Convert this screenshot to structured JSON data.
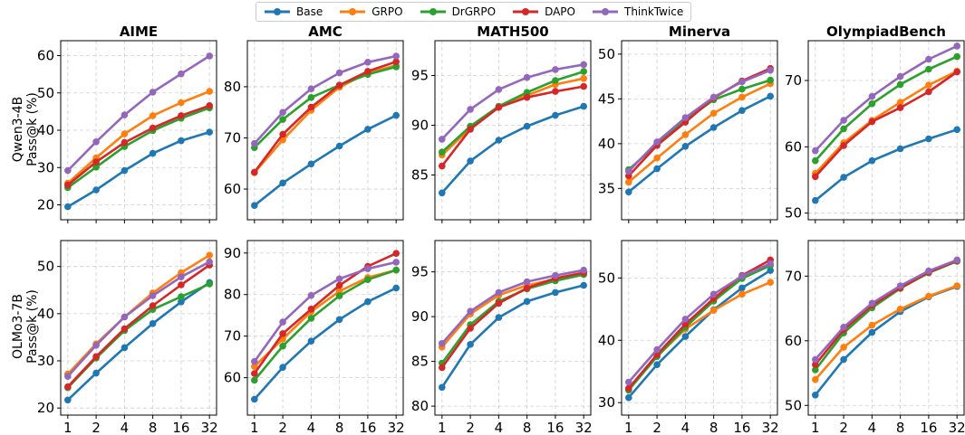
{
  "legend": [
    {
      "name": "Base",
      "color": "#1f77b4"
    },
    {
      "name": "GRPO",
      "color": "#ff7f0e"
    },
    {
      "name": "DrGRPO",
      "color": "#2ca02c"
    },
    {
      "name": "DAPO",
      "color": "#d62728"
    },
    {
      "name": "ThinkTwice",
      "color": "#9467bd"
    }
  ],
  "row_labels": [
    {
      "model": "Qwen3-4B",
      "metric": "Pass@k (%)"
    },
    {
      "model": "OLMo3-7B",
      "metric": "Pass@k (%)"
    }
  ],
  "chart_data": [
    {
      "type": "line",
      "title": "AIME",
      "row": 0,
      "col": 0,
      "x": [
        1,
        2,
        4,
        8,
        16,
        32
      ],
      "x_tick_labels": [
        "1",
        "2",
        "4",
        "8",
        "16",
        "32"
      ],
      "ylim": [
        16,
        64
      ],
      "yticks": [
        20,
        30,
        40,
        50,
        60
      ],
      "grid": true,
      "series": [
        {
          "name": "Base",
          "values": [
            19.5,
            24.0,
            29.2,
            33.8,
            37.2,
            39.5
          ]
        },
        {
          "name": "GRPO",
          "values": [
            25.8,
            32.6,
            39.0,
            43.9,
            47.4,
            50.4
          ]
        },
        {
          "name": "DrGRPO",
          "values": [
            24.6,
            30.1,
            35.6,
            39.9,
            43.2,
            46.0
          ]
        },
        {
          "name": "DAPO",
          "values": [
            25.3,
            31.5,
            36.7,
            40.6,
            43.9,
            46.6
          ]
        },
        {
          "name": "ThinkTwice",
          "values": [
            29.2,
            36.9,
            44.1,
            50.2,
            55.1,
            59.9
          ]
        }
      ]
    },
    {
      "type": "line",
      "title": "AMC",
      "row": 0,
      "col": 1,
      "x": [
        1,
        2,
        4,
        8,
        16,
        32
      ],
      "x_tick_labels": [
        "1",
        "2",
        "4",
        "8",
        "16",
        "32"
      ],
      "ylim": [
        54,
        89
      ],
      "yticks": [
        60,
        70,
        80
      ],
      "grid": true,
      "series": [
        {
          "name": "Base",
          "values": [
            56.8,
            61.2,
            64.9,
            68.4,
            71.7,
            74.4
          ]
        },
        {
          "name": "GRPO",
          "values": [
            63.2,
            69.6,
            75.4,
            79.9,
            82.7,
            84.2
          ]
        },
        {
          "name": "DrGRPO",
          "values": [
            68.1,
            73.6,
            77.9,
            80.3,
            82.4,
            83.9
          ]
        },
        {
          "name": "DAPO",
          "values": [
            63.3,
            70.7,
            76.0,
            80.3,
            83.0,
            84.9
          ]
        },
        {
          "name": "ThinkTwice",
          "values": [
            68.9,
            75.0,
            79.6,
            82.7,
            84.8,
            86.0
          ]
        }
      ]
    },
    {
      "type": "line",
      "title": "MATH500",
      "row": 0,
      "col": 2,
      "x": [
        1,
        2,
        4,
        8,
        16,
        32
      ],
      "x_tick_labels": [
        "1",
        "2",
        "4",
        "8",
        "16",
        "32"
      ],
      "ylim": [
        80.5,
        98.5
      ],
      "yticks": [
        85,
        90,
        95
      ],
      "grid": true,
      "series": [
        {
          "name": "Base",
          "values": [
            83.2,
            86.4,
            88.5,
            89.9,
            91.0,
            91.9
          ]
        },
        {
          "name": "GRPO",
          "values": [
            87.0,
            89.7,
            91.8,
            93.0,
            94.1,
            94.7
          ]
        },
        {
          "name": "DrGRPO",
          "values": [
            87.3,
            89.9,
            91.9,
            93.3,
            94.5,
            95.4
          ]
        },
        {
          "name": "DAPO",
          "values": [
            85.9,
            89.6,
            91.8,
            92.8,
            93.4,
            93.9
          ]
        },
        {
          "name": "ThinkTwice",
          "values": [
            88.6,
            91.6,
            93.6,
            94.8,
            95.6,
            96.1
          ]
        }
      ]
    },
    {
      "type": "line",
      "title": "Minerva",
      "row": 0,
      "col": 3,
      "x": [
        1,
        2,
        4,
        8,
        16,
        32
      ],
      "x_tick_labels": [
        "1",
        "2",
        "4",
        "8",
        "16",
        "32"
      ],
      "ylim": [
        31.5,
        51.5
      ],
      "yticks": [
        35,
        40,
        45,
        50
      ],
      "grid": true,
      "series": [
        {
          "name": "Base",
          "values": [
            34.6,
            37.2,
            39.7,
            41.8,
            43.7,
            45.3
          ]
        },
        {
          "name": "GRPO",
          "values": [
            35.7,
            38.4,
            41.0,
            43.4,
            45.2,
            46.7
          ]
        },
        {
          "name": "DrGRPO",
          "values": [
            37.1,
            39.9,
            42.6,
            44.9,
            46.1,
            47.1
          ]
        },
        {
          "name": "DAPO",
          "values": [
            36.4,
            39.8,
            42.4,
            45.1,
            47.0,
            48.4
          ]
        },
        {
          "name": "ThinkTwice",
          "values": [
            36.9,
            40.2,
            42.9,
            45.2,
            46.9,
            48.2
          ]
        }
      ]
    },
    {
      "type": "line",
      "title": "OlympiadBench",
      "row": 0,
      "col": 4,
      "x": [
        1,
        2,
        4,
        8,
        16,
        32
      ],
      "x_tick_labels": [
        "1",
        "2",
        "4",
        "8",
        "16",
        "32"
      ],
      "ylim": [
        49,
        76
      ],
      "yticks": [
        50,
        60,
        70
      ],
      "grid": true,
      "series": [
        {
          "name": "Base",
          "values": [
            51.9,
            55.4,
            57.9,
            59.7,
            61.2,
            62.6
          ]
        },
        {
          "name": "GRPO",
          "values": [
            56.0,
            60.6,
            64.0,
            66.7,
            69.3,
            71.4
          ]
        },
        {
          "name": "DrGRPO",
          "values": [
            57.9,
            62.7,
            66.5,
            69.4,
            71.7,
            73.6
          ]
        },
        {
          "name": "DAPO",
          "values": [
            55.5,
            60.2,
            63.8,
            65.9,
            68.3,
            71.3
          ]
        },
        {
          "name": "ThinkTwice",
          "values": [
            59.4,
            64.0,
            67.6,
            70.6,
            73.2,
            75.2
          ]
        }
      ]
    },
    {
      "type": "line",
      "title": "",
      "row": 1,
      "col": 0,
      "x": [
        1,
        2,
        4,
        8,
        16,
        32
      ],
      "x_tick_labels": [
        "1",
        "2",
        "4",
        "8",
        "16",
        "32"
      ],
      "ylim": [
        18.5,
        55.5
      ],
      "yticks": [
        20,
        30,
        40,
        50
      ],
      "grid": true,
      "series": [
        {
          "name": "Base",
          "values": [
            21.7,
            27.4,
            32.8,
            37.9,
            42.5,
            46.6
          ]
        },
        {
          "name": "GRPO",
          "values": [
            27.2,
            33.6,
            39.3,
            44.4,
            48.7,
            52.4
          ]
        },
        {
          "name": "DrGRPO",
          "values": [
            24.3,
            30.6,
            36.4,
            40.9,
            43.6,
            46.3
          ]
        },
        {
          "name": "DAPO",
          "values": [
            24.5,
            30.9,
            36.8,
            41.7,
            46.1,
            50.3
          ]
        },
        {
          "name": "ThinkTwice",
          "values": [
            26.7,
            33.3,
            39.3,
            43.8,
            47.8,
            51.0
          ]
        }
      ]
    },
    {
      "type": "line",
      "title": "",
      "row": 1,
      "col": 1,
      "x": [
        1,
        2,
        4,
        8,
        16,
        32
      ],
      "x_tick_labels": [
        "1",
        "2",
        "4",
        "8",
        "16",
        "32"
      ],
      "ylim": [
        51,
        93
      ],
      "yticks": [
        60,
        70,
        80,
        90
      ],
      "grid": true,
      "series": [
        {
          "name": "Base",
          "values": [
            54.8,
            62.5,
            68.8,
            74.0,
            78.3,
            81.6
          ]
        },
        {
          "name": "GRPO",
          "values": [
            62.7,
            69.3,
            75.9,
            80.8,
            84.1,
            85.9
          ]
        },
        {
          "name": "DrGRPO",
          "values": [
            59.4,
            67.6,
            74.3,
            79.7,
            83.6,
            85.9
          ]
        },
        {
          "name": "DAPO",
          "values": [
            61.0,
            70.6,
            76.5,
            82.2,
            86.8,
            89.9
          ]
        },
        {
          "name": "ThinkTwice",
          "values": [
            63.9,
            73.4,
            79.8,
            83.8,
            86.2,
            87.8
          ]
        }
      ]
    },
    {
      "type": "line",
      "title": "",
      "row": 1,
      "col": 2,
      "x": [
        1,
        2,
        4,
        8,
        16,
        32
      ],
      "x_tick_labels": [
        "1",
        "2",
        "4",
        "8",
        "16",
        "32"
      ],
      "ylim": [
        79,
        98.5
      ],
      "yticks": [
        80,
        85,
        90,
        95
      ],
      "grid": true,
      "series": [
        {
          "name": "Base",
          "values": [
            82.1,
            86.9,
            89.9,
            91.7,
            92.7,
            93.5
          ]
        },
        {
          "name": "GRPO",
          "values": [
            86.6,
            90.3,
            92.4,
            93.5,
            94.2,
            94.9
          ]
        },
        {
          "name": "DrGRPO",
          "values": [
            84.8,
            89.1,
            91.7,
            93.1,
            94.0,
            94.7
          ]
        },
        {
          "name": "DAPO",
          "values": [
            84.3,
            88.7,
            91.5,
            93.2,
            94.3,
            94.9
          ]
        },
        {
          "name": "ThinkTwice",
          "values": [
            87.0,
            90.6,
            92.7,
            93.9,
            94.6,
            95.2
          ]
        }
      ]
    },
    {
      "type": "line",
      "title": "",
      "row": 1,
      "col": 3,
      "x": [
        1,
        2,
        4,
        8,
        16,
        32
      ],
      "x_tick_labels": [
        "1",
        "2",
        "4",
        "8",
        "16",
        "32"
      ],
      "ylim": [
        28,
        56
      ],
      "yticks": [
        30,
        40,
        50
      ],
      "grid": true,
      "series": [
        {
          "name": "Base",
          "values": [
            30.8,
            36.1,
            40.6,
            44.9,
            48.4,
            51.2
          ]
        },
        {
          "name": "GRPO",
          "values": [
            32.2,
            37.4,
            41.8,
            44.8,
            47.4,
            49.3
          ]
        },
        {
          "name": "DrGRPO",
          "values": [
            32.0,
            37.4,
            42.1,
            46.3,
            49.9,
            52.0
          ]
        },
        {
          "name": "DAPO",
          "values": [
            32.3,
            37.7,
            42.6,
            46.7,
            50.4,
            52.9
          ]
        },
        {
          "name": "ThinkTwice",
          "values": [
            33.3,
            38.5,
            43.4,
            47.4,
            50.3,
            52.3
          ]
        }
      ]
    },
    {
      "type": "line",
      "title": "",
      "row": 1,
      "col": 4,
      "x": [
        1,
        2,
        4,
        8,
        16,
        32
      ],
      "x_tick_labels": [
        "1",
        "2",
        "4",
        "8",
        "16",
        "32"
      ],
      "ylim": [
        48.5,
        75.5
      ],
      "yticks": [
        50,
        60,
        70
      ],
      "grid": true,
      "series": [
        {
          "name": "Base",
          "values": [
            51.6,
            57.1,
            61.3,
            64.5,
            66.8,
            68.4
          ]
        },
        {
          "name": "GRPO",
          "values": [
            54.0,
            59.0,
            62.4,
            64.9,
            66.9,
            68.5
          ]
        },
        {
          "name": "DrGRPO",
          "values": [
            55.5,
            61.2,
            65.1,
            68.1,
            70.5,
            72.3
          ]
        },
        {
          "name": "DAPO",
          "values": [
            56.3,
            61.7,
            65.5,
            68.2,
            70.6,
            72.4
          ]
        },
        {
          "name": "ThinkTwice",
          "values": [
            57.1,
            62.1,
            65.8,
            68.5,
            70.8,
            72.5
          ]
        }
      ]
    }
  ]
}
